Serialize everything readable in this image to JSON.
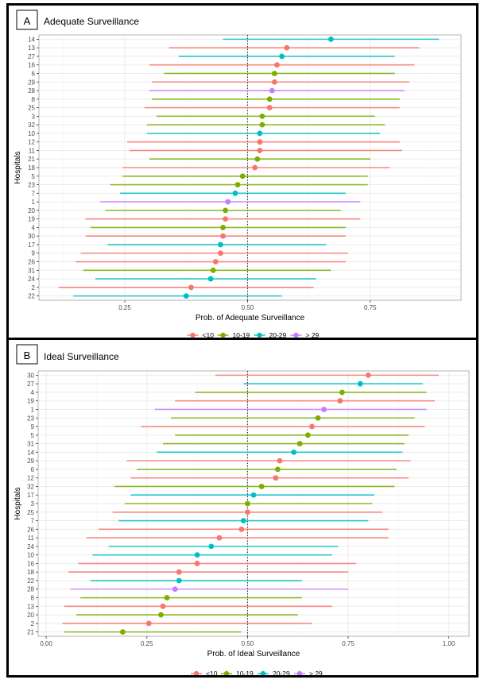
{
  "chart_data": [
    {
      "type": "forest",
      "panel_label": "A",
      "title": "Adequate Surveillance",
      "xlabel": "Prob. of Adequate Surveillance",
      "ylabel": "Hospitals",
      "xlim": [
        0.075,
        0.935
      ],
      "xticks": [
        0.25,
        0.5,
        0.75
      ],
      "xtick_labels": [
        "0.25",
        "0.50",
        "0.75"
      ],
      "grid": true,
      "reference_line": 0.5,
      "legend_position": "bottom",
      "legend": [
        {
          "label": "<10",
          "color": "#F8766D"
        },
        {
          "label": "10-19",
          "color": "#7CAE00"
        },
        {
          "label": "20-29",
          "color": "#00BFC4"
        },
        {
          "label": "> 29",
          "color": "#C77CFF"
        }
      ],
      "rows": [
        {
          "hospital": "14",
          "group": "20-29",
          "est": 0.67,
          "lo": 0.45,
          "hi": 0.89
        },
        {
          "hospital": "13",
          "group": "<10",
          "est": 0.58,
          "lo": 0.34,
          "hi": 0.85
        },
        {
          "hospital": "27",
          "group": "20-29",
          "est": 0.57,
          "lo": 0.36,
          "hi": 0.8
        },
        {
          "hospital": "16",
          "group": "<10",
          "est": 0.56,
          "lo": 0.3,
          "hi": 0.84
        },
        {
          "hospital": "6",
          "group": "10-19",
          "est": 0.555,
          "lo": 0.33,
          "hi": 0.8
        },
        {
          "hospital": "29",
          "group": "<10",
          "est": 0.555,
          "lo": 0.305,
          "hi": 0.83
        },
        {
          "hospital": "28",
          "group": "> 29",
          "est": 0.55,
          "lo": 0.3,
          "hi": 0.82
        },
        {
          "hospital": "8",
          "group": "10-19",
          "est": 0.545,
          "lo": 0.305,
          "hi": 0.81
        },
        {
          "hospital": "25",
          "group": "<10",
          "est": 0.545,
          "lo": 0.29,
          "hi": 0.81
        },
        {
          "hospital": "3",
          "group": "10-19",
          "est": 0.53,
          "lo": 0.315,
          "hi": 0.76
        },
        {
          "hospital": "32",
          "group": "10-19",
          "est": 0.53,
          "lo": 0.295,
          "hi": 0.78
        },
        {
          "hospital": "10",
          "group": "20-29",
          "est": 0.525,
          "lo": 0.295,
          "hi": 0.77
        },
        {
          "hospital": "12",
          "group": "<10",
          "est": 0.525,
          "lo": 0.255,
          "hi": 0.81
        },
        {
          "hospital": "11",
          "group": "<10",
          "est": 0.525,
          "lo": 0.26,
          "hi": 0.815
        },
        {
          "hospital": "21",
          "group": "10-19",
          "est": 0.52,
          "lo": 0.3,
          "hi": 0.75
        },
        {
          "hospital": "18",
          "group": "<10",
          "est": 0.515,
          "lo": 0.245,
          "hi": 0.79
        },
        {
          "hospital": "5",
          "group": "10-19",
          "est": 0.49,
          "lo": 0.245,
          "hi": 0.745
        },
        {
          "hospital": "23",
          "group": "10-19",
          "est": 0.48,
          "lo": 0.22,
          "hi": 0.745
        },
        {
          "hospital": "7",
          "group": "20-29",
          "est": 0.475,
          "lo": 0.24,
          "hi": 0.7
        },
        {
          "hospital": "1",
          "group": "> 29",
          "est": 0.46,
          "lo": 0.2,
          "hi": 0.73
        },
        {
          "hospital": "20",
          "group": "10-19",
          "est": 0.455,
          "lo": 0.21,
          "hi": 0.69
        },
        {
          "hospital": "19",
          "group": "<10",
          "est": 0.455,
          "lo": 0.17,
          "hi": 0.73
        },
        {
          "hospital": "4",
          "group": "10-19",
          "est": 0.45,
          "lo": 0.18,
          "hi": 0.7
        },
        {
          "hospital": "30",
          "group": "<10",
          "est": 0.45,
          "lo": 0.17,
          "hi": 0.7
        },
        {
          "hospital": "17",
          "group": "20-29",
          "est": 0.445,
          "lo": 0.215,
          "hi": 0.66
        },
        {
          "hospital": "9",
          "group": "<10",
          "est": 0.445,
          "lo": 0.16,
          "hi": 0.705
        },
        {
          "hospital": "26",
          "group": "<10",
          "est": 0.435,
          "lo": 0.15,
          "hi": 0.7
        },
        {
          "hospital": "31",
          "group": "10-19",
          "est": 0.43,
          "lo": 0.165,
          "hi": 0.67
        },
        {
          "hospital": "24",
          "group": "20-29",
          "est": 0.425,
          "lo": 0.19,
          "hi": 0.64
        },
        {
          "hospital": "2",
          "group": "<10",
          "est": 0.385,
          "lo": 0.115,
          "hi": 0.635
        },
        {
          "hospital": "22",
          "group": "20-29",
          "est": 0.375,
          "lo": 0.145,
          "hi": 0.57
        }
      ]
    },
    {
      "type": "forest",
      "panel_label": "B",
      "title": "Ideal Surveillance",
      "xlabel": "Prob. of Ideal Surveillance",
      "ylabel": "Hospitals",
      "xlim": [
        -0.02,
        1.05
      ],
      "xticks": [
        0.0,
        0.25,
        0.5,
        0.75,
        1.0
      ],
      "xtick_labels": [
        "0.00",
        "0.25",
        "0.50",
        "0.75",
        "1.00"
      ],
      "grid": true,
      "reference_line": 0.5,
      "legend_position": "bottom",
      "legend": [
        {
          "label": "<10",
          "color": "#F8766D"
        },
        {
          "label": "10-19",
          "color": "#7CAE00"
        },
        {
          "label": "20-29",
          "color": "#00BFC4"
        },
        {
          "label": "> 29",
          "color": "#C77CFF"
        }
      ],
      "rows": [
        {
          "hospital": "30",
          "group": "<10",
          "est": 0.8,
          "lo": 0.42,
          "hi": 0.975
        },
        {
          "hospital": "27",
          "group": "20-29",
          "est": 0.78,
          "lo": 0.49,
          "hi": 0.935
        },
        {
          "hospital": "4",
          "group": "10-19",
          "est": 0.735,
          "lo": 0.37,
          "hi": 0.945
        },
        {
          "hospital": "19",
          "group": "<10",
          "est": 0.73,
          "lo": 0.32,
          "hi": 0.965
        },
        {
          "hospital": "1",
          "group": "> 29",
          "est": 0.69,
          "lo": 0.27,
          "hi": 0.945
        },
        {
          "hospital": "23",
          "group": "10-19",
          "est": 0.675,
          "lo": 0.31,
          "hi": 0.915
        },
        {
          "hospital": "9",
          "group": "<10",
          "est": 0.66,
          "lo": 0.235,
          "hi": 0.94
        },
        {
          "hospital": "5",
          "group": "10-19",
          "est": 0.65,
          "lo": 0.32,
          "hi": 0.9
        },
        {
          "hospital": "31",
          "group": "10-19",
          "est": 0.63,
          "lo": 0.29,
          "hi": 0.89
        },
        {
          "hospital": "14",
          "group": "20-29",
          "est": 0.615,
          "lo": 0.275,
          "hi": 0.885
        },
        {
          "hospital": "29",
          "group": "<10",
          "est": 0.58,
          "lo": 0.2,
          "hi": 0.905
        },
        {
          "hospital": "6",
          "group": "10-19",
          "est": 0.575,
          "lo": 0.225,
          "hi": 0.87
        },
        {
          "hospital": "12",
          "group": "<10",
          "est": 0.57,
          "lo": 0.21,
          "hi": 0.9
        },
        {
          "hospital": "32",
          "group": "10-19",
          "est": 0.535,
          "lo": 0.17,
          "hi": 0.865
        },
        {
          "hospital": "17",
          "group": "20-29",
          "est": 0.515,
          "lo": 0.21,
          "hi": 0.815
        },
        {
          "hospital": "3",
          "group": "10-19",
          "est": 0.5,
          "lo": 0.195,
          "hi": 0.81
        },
        {
          "hospital": "25",
          "group": "<10",
          "est": 0.5,
          "lo": 0.165,
          "hi": 0.835
        },
        {
          "hospital": "7",
          "group": "20-29",
          "est": 0.49,
          "lo": 0.18,
          "hi": 0.8
        },
        {
          "hospital": "26",
          "group": "<10",
          "est": 0.485,
          "lo": 0.13,
          "hi": 0.85
        },
        {
          "hospital": "11",
          "group": "<10",
          "est": 0.43,
          "lo": 0.1,
          "hi": 0.85
        },
        {
          "hospital": "24",
          "group": "20-29",
          "est": 0.41,
          "lo": 0.155,
          "hi": 0.725
        },
        {
          "hospital": "10",
          "group": "20-29",
          "est": 0.375,
          "lo": 0.115,
          "hi": 0.71
        },
        {
          "hospital": "16",
          "group": "<10",
          "est": 0.375,
          "lo": 0.08,
          "hi": 0.77
        },
        {
          "hospital": "18",
          "group": "<10",
          "est": 0.33,
          "lo": 0.055,
          "hi": 0.75
        },
        {
          "hospital": "22",
          "group": "20-29",
          "est": 0.33,
          "lo": 0.11,
          "hi": 0.635
        },
        {
          "hospital": "28",
          "group": "> 29",
          "est": 0.32,
          "lo": 0.06,
          "hi": 0.75
        },
        {
          "hospital": "8",
          "group": "10-19",
          "est": 0.3,
          "lo": 0.085,
          "hi": 0.635
        },
        {
          "hospital": "13",
          "group": "<10",
          "est": 0.29,
          "lo": 0.045,
          "hi": 0.71
        },
        {
          "hospital": "20",
          "group": "10-19",
          "est": 0.285,
          "lo": 0.075,
          "hi": 0.625
        },
        {
          "hospital": "2",
          "group": "<10",
          "est": 0.255,
          "lo": 0.04,
          "hi": 0.66
        },
        {
          "hospital": "21",
          "group": "10-19",
          "est": 0.19,
          "lo": 0.045,
          "hi": 0.485
        }
      ]
    }
  ]
}
